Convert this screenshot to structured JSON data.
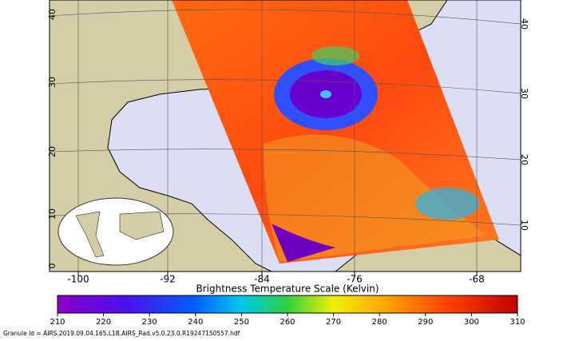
{
  "map": {
    "lat_labels_left": [
      40,
      30,
      20,
      10,
      0
    ],
    "lat_labels_right": [
      40,
      30,
      20,
      10
    ],
    "lon_labels": [
      -100,
      -92,
      -84,
      -76,
      -68
    ]
  },
  "colorbar": {
    "title": "Brightness Temperature Scale (Kelvin)",
    "ticks": [
      210,
      220,
      230,
      240,
      250,
      260,
      270,
      280,
      290,
      300,
      310
    ]
  },
  "footer": {
    "granule": "Granule Id = AIRS.2019.09.04.165.L1B.AIRS_Rad.v5.0.23.0.R19247150557.hdf"
  }
}
